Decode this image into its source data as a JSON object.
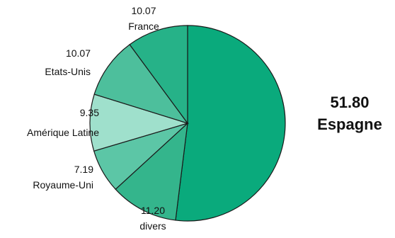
{
  "chart_data": {
    "type": "pie",
    "title": "",
    "slices": [
      {
        "value": 51.8,
        "value_label": "51.80",
        "label": "Espagne",
        "color": "#0aaa7c"
      },
      {
        "value": 11.2,
        "value_label": "11.20",
        "label": "divers",
        "color": "#34b58c"
      },
      {
        "value": 7.19,
        "value_label": "7.19",
        "label": "Royaume-Uni",
        "color": "#5cc6a6"
      },
      {
        "value": 9.35,
        "value_label": "9.35",
        "label": "Amérique Latine",
        "color": "#9fe0cc"
      },
      {
        "value": 10.07,
        "value_label": "10.07",
        "label": "Etats-Unis",
        "color": "#4dbf9c"
      },
      {
        "value": 10.07,
        "value_label": "10.07",
        "label": "France",
        "color": "#26b288"
      }
    ]
  }
}
